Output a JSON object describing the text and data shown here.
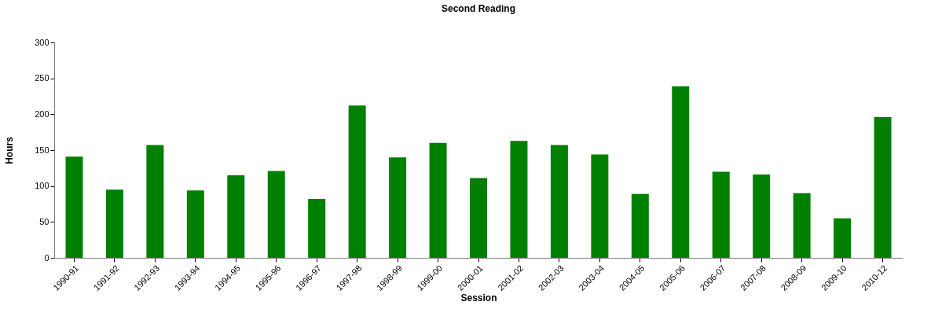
{
  "chart_data": {
    "type": "bar",
    "title": "Second Reading",
    "xlabel": "Session",
    "ylabel": "Hours",
    "categories": [
      "1990-91",
      "1991-92",
      "1992-93",
      "1993-94",
      "1994-95",
      "1995-96",
      "1996-97",
      "1997-98",
      "1998-99",
      "1999-00",
      "2000-01",
      "2001-02",
      "2002-03",
      "2003-04",
      "2004-05",
      "2005-06",
      "2006-07",
      "2007-08",
      "2008-09",
      "2009-10",
      "2010-12"
    ],
    "values": [
      141,
      95,
      157,
      94,
      115,
      121,
      82,
      212,
      140,
      160,
      111,
      163,
      157,
      144,
      89,
      239,
      120,
      116,
      90,
      55,
      196
    ],
    "color": "#008000",
    "ylim": [
      0,
      300
    ],
    "yticks": [
      0,
      50,
      100,
      150,
      200,
      250,
      300
    ],
    "grid": false
  }
}
